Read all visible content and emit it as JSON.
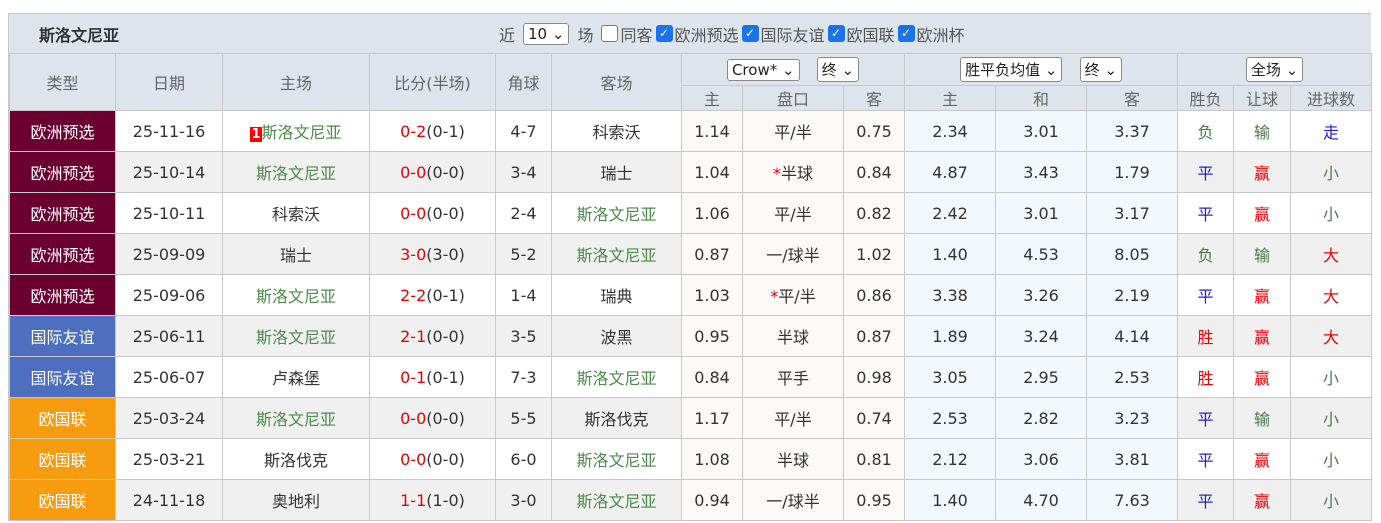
{
  "header": {
    "team": "斯洛文尼亚",
    "recent_label": "近",
    "recent_value": "10",
    "games_label": "场",
    "filters": [
      {
        "label": "同客",
        "checked": false
      },
      {
        "label": "欧洲预选",
        "checked": true
      },
      {
        "label": "国际友谊",
        "checked": true
      },
      {
        "label": "欧国联",
        "checked": true
      },
      {
        "label": "欧洲杯",
        "checked": true
      }
    ]
  },
  "columns": {
    "type": "类型",
    "date": "日期",
    "home": "主场",
    "score": "比分(半场)",
    "corner": "角球",
    "away": "客场",
    "odds_company": "Crow*",
    "odds_time": "终",
    "avg_select": "胜平负均值",
    "avg_time": "终",
    "period": "全场",
    "sub": [
      "主",
      "盘口",
      "客",
      "主",
      "和",
      "客",
      "胜负",
      "让球",
      "进球数"
    ]
  },
  "colors": {
    "欧洲预选": "#6b0030",
    "国际友谊": "#4e6ebf",
    "欧国联": "#f79b0f"
  },
  "rows": [
    {
      "type": "欧洲预选",
      "date": "25-11-16",
      "rank": "1",
      "home": "斯洛文尼亚",
      "home_self": true,
      "score": "0-2",
      "half": "(0-1)",
      "corner": "4-7",
      "away": "科索沃",
      "away_self": false,
      "oh": "1.14",
      "line": "平/半",
      "star": false,
      "oa": "0.75",
      "w": "2.34",
      "d": "3.01",
      "l": "3.37",
      "res": "负",
      "hc": "输",
      "ou": "走"
    },
    {
      "type": "欧洲预选",
      "date": "25-10-14",
      "home": "斯洛文尼亚",
      "home_self": true,
      "score": "0-0",
      "half": "(0-0)",
      "corner": "3-4",
      "away": "瑞士",
      "away_self": false,
      "oh": "1.04",
      "line": "半球",
      "star": true,
      "oa": "0.84",
      "w": "4.87",
      "d": "3.43",
      "l": "1.79",
      "res": "平",
      "hc": "赢",
      "ou": "小"
    },
    {
      "type": "欧洲预选",
      "date": "25-10-11",
      "home": "科索沃",
      "home_self": false,
      "score": "0-0",
      "half": "(0-0)",
      "corner": "2-4",
      "away": "斯洛文尼亚",
      "away_self": true,
      "oh": "1.06",
      "line": "平/半",
      "star": false,
      "oa": "0.82",
      "w": "2.42",
      "d": "3.01",
      "l": "3.17",
      "res": "平",
      "hc": "赢",
      "ou": "小"
    },
    {
      "type": "欧洲预选",
      "date": "25-09-09",
      "home": "瑞士",
      "home_self": false,
      "score": "3-0",
      "half": "(3-0)",
      "corner": "5-2",
      "away": "斯洛文尼亚",
      "away_self": true,
      "oh": "0.87",
      "line": "一/球半",
      "star": false,
      "oa": "1.02",
      "w": "1.40",
      "d": "4.53",
      "l": "8.05",
      "res": "负",
      "hc": "输",
      "ou": "大"
    },
    {
      "type": "欧洲预选",
      "date": "25-09-06",
      "home": "斯洛文尼亚",
      "home_self": true,
      "score": "2-2",
      "half": "(0-1)",
      "corner": "1-4",
      "away": "瑞典",
      "away_self": false,
      "oh": "1.03",
      "line": "平/半",
      "star": true,
      "oa": "0.86",
      "w": "3.38",
      "d": "3.26",
      "l": "2.19",
      "res": "平",
      "hc": "赢",
      "ou": "大"
    },
    {
      "type": "国际友谊",
      "date": "25-06-11",
      "home": "斯洛文尼亚",
      "home_self": true,
      "score": "2-1",
      "half": "(0-0)",
      "corner": "3-5",
      "away": "波黑",
      "away_self": false,
      "oh": "0.95",
      "line": "半球",
      "star": false,
      "oa": "0.87",
      "w": "1.89",
      "d": "3.24",
      "l": "4.14",
      "res": "胜",
      "hc": "赢",
      "ou": "大"
    },
    {
      "type": "国际友谊",
      "date": "25-06-07",
      "home": "卢森堡",
      "home_self": false,
      "score": "0-1",
      "half": "(0-1)",
      "corner": "7-3",
      "away": "斯洛文尼亚",
      "away_self": true,
      "oh": "0.84",
      "line": "平手",
      "star": false,
      "oa": "0.98",
      "w": "3.05",
      "d": "2.95",
      "l": "2.53",
      "res": "胜",
      "hc": "赢",
      "ou": "小"
    },
    {
      "type": "欧国联",
      "date": "25-03-24",
      "home": "斯洛文尼亚",
      "home_self": true,
      "score": "0-0",
      "half": "(0-0)",
      "corner": "5-5",
      "away": "斯洛伐克",
      "away_self": false,
      "oh": "1.17",
      "line": "平/半",
      "star": false,
      "oa": "0.74",
      "w": "2.53",
      "d": "2.82",
      "l": "3.23",
      "res": "平",
      "hc": "输",
      "ou": "小"
    },
    {
      "type": "欧国联",
      "date": "25-03-21",
      "home": "斯洛伐克",
      "home_self": false,
      "score": "0-0",
      "half": "(0-0)",
      "corner": "6-0",
      "away": "斯洛文尼亚",
      "away_self": true,
      "oh": "1.08",
      "line": "半球",
      "star": false,
      "oa": "0.81",
      "w": "2.12",
      "d": "3.06",
      "l": "3.81",
      "res": "平",
      "hc": "赢",
      "ou": "小"
    },
    {
      "type": "欧国联",
      "date": "24-11-18",
      "home": "奥地利",
      "home_self": false,
      "score": "1-1",
      "half": "(1-0)",
      "corner": "3-0",
      "away": "斯洛文尼亚",
      "away_self": true,
      "oh": "0.94",
      "line": "一/球半",
      "star": false,
      "oa": "0.95",
      "w": "1.40",
      "d": "4.70",
      "l": "7.63",
      "res": "平",
      "hc": "赢",
      "ou": "小"
    }
  ]
}
